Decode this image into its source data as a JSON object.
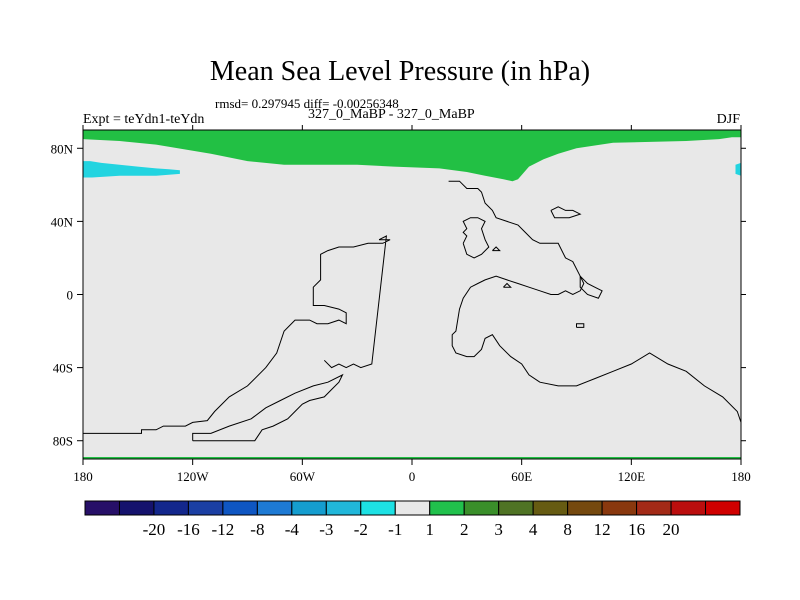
{
  "title": "Mean Sea Level Pressure (in hPa)",
  "stats": "rmsd= 0.297945 diff= -0.00256348",
  "experiment": "Expt = teYdn1-teYdn",
  "period": "327_0_MaBP - 327_0_MaBP",
  "season": "DJF",
  "colors": {
    "background": "#e8e8e8",
    "green": "#22c044",
    "cyan": "#22d4e0",
    "coast": "#000000"
  },
  "chart_data": {
    "type": "heatmap",
    "title": "Mean Sea Level Pressure (in hPa)",
    "xlabel": "",
    "ylabel": "",
    "xlim": [
      -180,
      180
    ],
    "ylim": [
      -90,
      90
    ],
    "x_ticks": [
      {
        "value": -180,
        "label": "180"
      },
      {
        "value": -120,
        "label": "120W"
      },
      {
        "value": -60,
        "label": "60W"
      },
      {
        "value": 0,
        "label": "0"
      },
      {
        "value": 60,
        "label": "60E"
      },
      {
        "value": 120,
        "label": "120E"
      },
      {
        "value": 180,
        "label": "180"
      }
    ],
    "y_ticks": [
      {
        "value": 80,
        "label": "80N"
      },
      {
        "value": 40,
        "label": "40N"
      },
      {
        "value": 0,
        "label": "0"
      },
      {
        "value": -40,
        "label": "40S"
      },
      {
        "value": -80,
        "label": "80S"
      }
    ],
    "regions": [
      {
        "name": "arctic-high-anomaly",
        "range": "1 to 2 hPa",
        "color": "#22c044",
        "boundary": [
          [
            -180,
            90
          ],
          [
            180,
            90
          ],
          [
            180,
            86
          ],
          [
            175,
            86
          ],
          [
            168,
            85
          ],
          [
            150,
            84
          ],
          [
            110,
            83
          ],
          [
            90,
            80
          ],
          [
            80,
            77
          ],
          [
            72,
            74
          ],
          [
            64,
            70
          ],
          [
            58,
            63
          ],
          [
            55,
            62
          ],
          [
            50,
            63
          ],
          [
            40,
            65
          ],
          [
            30,
            67
          ],
          [
            15,
            69
          ],
          [
            -10,
            70
          ],
          [
            -30,
            71
          ],
          [
            -50,
            71
          ],
          [
            -70,
            71
          ],
          [
            -90,
            73
          ],
          [
            -110,
            77
          ],
          [
            -140,
            82
          ],
          [
            -160,
            84
          ],
          [
            -180,
            85
          ]
        ]
      },
      {
        "name": "north-pacific-low-anomaly",
        "range": "-2 to -1 hPa",
        "color": "#22d4e0",
        "boundary": [
          [
            -180,
            73
          ],
          [
            -176,
            73
          ],
          [
            -170,
            72
          ],
          [
            -160,
            71
          ],
          [
            -150,
            70
          ],
          [
            -140,
            69
          ],
          [
            -133,
            68.5
          ],
          [
            -127,
            68
          ],
          [
            -127,
            66
          ],
          [
            -140,
            65
          ],
          [
            -160,
            65
          ],
          [
            -175,
            64
          ],
          [
            -180,
            64
          ]
        ]
      },
      {
        "name": "dateline-east-low-anomaly",
        "range": "-2 to -1 hPa",
        "color": "#22d4e0",
        "boundary": [
          [
            180,
            72
          ],
          [
            177,
            71
          ],
          [
            177,
            66
          ],
          [
            180,
            65
          ]
        ]
      }
    ],
    "coastlines": [
      [
        [
          -180,
          -76
        ],
        [
          -148,
          -76
        ],
        [
          -148,
          -74
        ],
        [
          -140,
          -74
        ],
        [
          -136,
          -72
        ],
        [
          -124,
          -72
        ],
        [
          -120,
          -70
        ],
        [
          -112,
          -69
        ],
        [
          -108,
          -64
        ],
        [
          -100,
          -56
        ],
        [
          -90,
          -50
        ],
        [
          -80,
          -40
        ],
        [
          -74,
          -32
        ],
        [
          -70,
          -20
        ],
        [
          -64,
          -14
        ],
        [
          -56,
          -14
        ],
        [
          -52,
          -16
        ],
        [
          -46,
          -16
        ],
        [
          -40,
          -14
        ],
        [
          -36,
          -16
        ],
        [
          -36,
          -10
        ],
        [
          -40,
          -8
        ],
        [
          -48,
          -6
        ],
        [
          -54,
          -6
        ],
        [
          -54,
          4
        ],
        [
          -50,
          8
        ],
        [
          -50,
          22
        ],
        [
          -46,
          24
        ],
        [
          -40,
          26
        ],
        [
          -32,
          26
        ],
        [
          -24,
          28
        ],
        [
          -16,
          28
        ],
        [
          -12,
          30
        ],
        [
          -18,
          30
        ],
        [
          -14,
          32
        ],
        [
          -22,
          -38
        ],
        [
          -28,
          -40
        ],
        [
          -32,
          -38
        ],
        [
          -36,
          -40
        ],
        [
          -40,
          -38
        ],
        [
          -44,
          -40
        ],
        [
          -48,
          -36
        ]
      ],
      [
        [
          -120,
          -80
        ],
        [
          -86,
          -80
        ],
        [
          -82,
          -74
        ],
        [
          -76,
          -72
        ],
        [
          -68,
          -68
        ],
        [
          -64,
          -64
        ],
        [
          -60,
          -60
        ],
        [
          -56,
          -58
        ],
        [
          -48,
          -56
        ],
        [
          -44,
          -52
        ],
        [
          -40,
          -48
        ],
        [
          -38,
          -44
        ],
        [
          -46,
          -48
        ],
        [
          -54,
          -50
        ],
        [
          -64,
          -54
        ],
        [
          -72,
          -58
        ],
        [
          -80,
          -62
        ],
        [
          -88,
          -68
        ],
        [
          -100,
          -72
        ],
        [
          -110,
          -76
        ],
        [
          -120,
          -76
        ],
        [
          -120,
          -80
        ]
      ],
      [
        [
          20,
          62
        ],
        [
          26,
          62
        ],
        [
          30,
          58
        ],
        [
          36,
          58
        ],
        [
          38,
          56
        ],
        [
          40,
          50
        ],
        [
          44,
          46
        ],
        [
          46,
          42
        ],
        [
          52,
          40
        ],
        [
          58,
          38
        ],
        [
          62,
          34
        ],
        [
          66,
          30
        ],
        [
          70,
          28
        ],
        [
          80,
          28
        ],
        [
          84,
          20
        ],
        [
          88,
          18
        ],
        [
          92,
          10
        ],
        [
          94,
          6
        ],
        [
          92,
          2
        ],
        [
          88,
          0
        ],
        [
          84,
          2
        ],
        [
          80,
          0
        ],
        [
          76,
          0
        ],
        [
          70,
          2
        ],
        [
          64,
          4
        ],
        [
          58,
          6
        ],
        [
          52,
          8
        ],
        [
          46,
          10
        ],
        [
          40,
          8
        ],
        [
          36,
          6
        ],
        [
          32,
          4
        ],
        [
          28,
          -2
        ],
        [
          26,
          -8
        ],
        [
          24,
          -20
        ],
        [
          22,
          -22
        ],
        [
          22,
          -28
        ],
        [
          24,
          -32
        ],
        [
          30,
          -34
        ],
        [
          34,
          -34
        ],
        [
          38,
          -30
        ],
        [
          40,
          -24
        ],
        [
          44,
          -22
        ],
        [
          48,
          -28
        ],
        [
          54,
          -34
        ],
        [
          60,
          -38
        ],
        [
          64,
          -44
        ],
        [
          70,
          -48
        ],
        [
          80,
          -50
        ],
        [
          90,
          -50
        ],
        [
          100,
          -46
        ],
        [
          110,
          -42
        ],
        [
          120,
          -38
        ],
        [
          130,
          -32
        ],
        [
          140,
          -38
        ],
        [
          150,
          -42
        ],
        [
          160,
          -50
        ],
        [
          170,
          -56
        ],
        [
          178,
          -64
        ],
        [
          180,
          -70
        ]
      ],
      [
        [
          28,
          28
        ],
        [
          30,
          32
        ],
        [
          28,
          34
        ],
        [
          30,
          36
        ],
        [
          28,
          40
        ],
        [
          32,
          42
        ],
        [
          36,
          42
        ],
        [
          40,
          40
        ],
        [
          38,
          36
        ],
        [
          40,
          30
        ],
        [
          42,
          26
        ],
        [
          38,
          22
        ],
        [
          34,
          20
        ],
        [
          30,
          22
        ],
        [
          28,
          28
        ]
      ],
      [
        [
          76,
          46
        ],
        [
          80,
          48
        ],
        [
          84,
          46
        ],
        [
          88,
          46
        ],
        [
          92,
          44
        ],
        [
          86,
          42
        ],
        [
          78,
          42
        ],
        [
          76,
          46
        ]
      ],
      [
        [
          92,
          10
        ],
        [
          96,
          6
        ],
        [
          100,
          4
        ],
        [
          104,
          2
        ],
        [
          102,
          -2
        ],
        [
          96,
          0
        ],
        [
          92,
          4
        ],
        [
          92,
          10
        ]
      ],
      [
        [
          90,
          -18
        ],
        [
          94,
          -18
        ],
        [
          94,
          -16
        ],
        [
          90,
          -16
        ],
        [
          90,
          -18
        ]
      ],
      [
        [
          44,
          24
        ],
        [
          46,
          26
        ],
        [
          48,
          24
        ],
        [
          44,
          24
        ]
      ],
      [
        [
          50,
          4
        ],
        [
          52,
          6
        ],
        [
          54,
          4
        ],
        [
          50,
          4
        ]
      ]
    ],
    "colorbar": {
      "colors": [
        "#271068",
        "#15126d",
        "#13278c",
        "#1b3fa3",
        "#0f56c2",
        "#1e7ad4",
        "#159dcf",
        "#21b7da",
        "#1de1e4",
        "#e8e8e8",
        "#21c14c",
        "#3a8f2a",
        "#4f7324",
        "#665b12",
        "#75490f",
        "#89380e",
        "#a32a17",
        "#bb0e0e",
        "#d00000"
      ],
      "labels": [
        "-20",
        "-16",
        "-12",
        "-8",
        "-4",
        "-3",
        "-2",
        "-1",
        "1",
        "2",
        "3",
        "4",
        "8",
        "12",
        "16",
        "20"
      ]
    }
  }
}
